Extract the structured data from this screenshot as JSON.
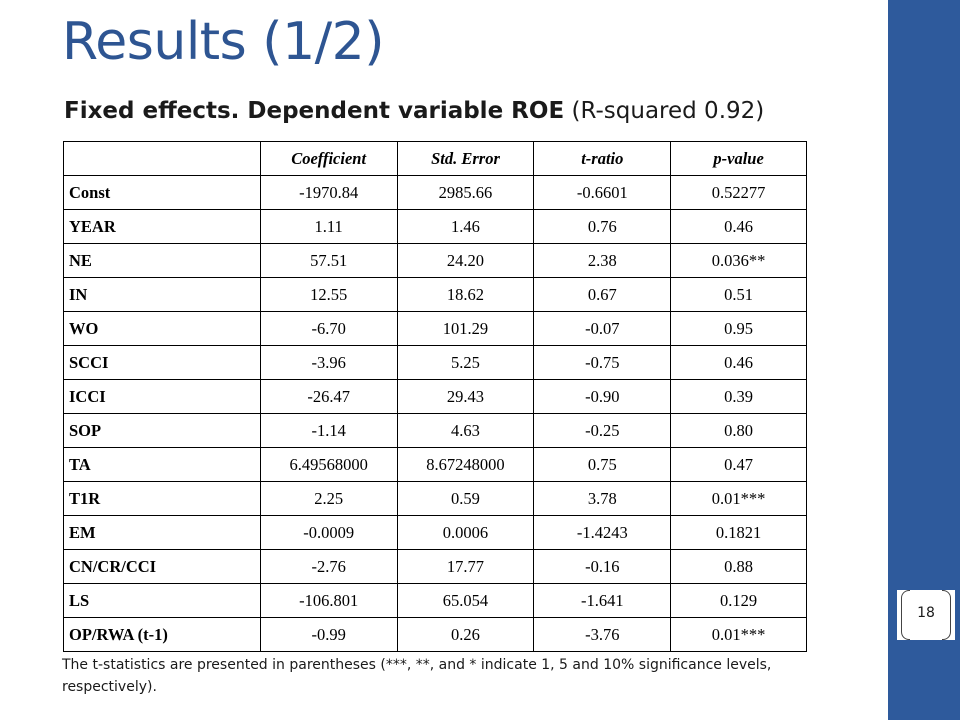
{
  "slide": {
    "title": "Results (1/2)",
    "subtitle_bold": "Fixed effects. Dependent variable ROE",
    "subtitle_regular": " (R-squared 0.92)",
    "page_number": "18",
    "footnote": "The t-statistics are presented in parentheses (***, **, and * indicate 1, 5 and 10% significance levels, respectively)."
  },
  "colors": {
    "sidebar": "#2e5a9c",
    "title": "#2e5592"
  },
  "table": {
    "headers": [
      "",
      "Coefficient",
      "Std. Error",
      "t-ratio",
      "p-value"
    ],
    "rows": [
      [
        "Const",
        "-1970.84",
        "2985.66",
        "-0.6601",
        "0.52277"
      ],
      [
        "YEAR",
        "1.11",
        "1.46",
        "0.76",
        "0.46"
      ],
      [
        "NE",
        "57.51",
        "24.20",
        "2.38",
        "0.036**"
      ],
      [
        "IN",
        "12.55",
        "18.62",
        "0.67",
        "0.51"
      ],
      [
        "WO",
        "-6.70",
        "101.29",
        "-0.07",
        "0.95"
      ],
      [
        "SCCI",
        "-3.96",
        "5.25",
        "-0.75",
        "0.46"
      ],
      [
        "ICCI",
        "-26.47",
        "29.43",
        "-0.90",
        "0.39"
      ],
      [
        "SOP",
        "-1.14",
        "4.63",
        "-0.25",
        "0.80"
      ],
      [
        "TA",
        "6.49568000",
        "8.67248000",
        "0.75",
        "0.47"
      ],
      [
        "T1R",
        "2.25",
        "0.59",
        "3.78",
        "0.01***"
      ],
      [
        "EM",
        "-0.0009",
        "0.0006",
        "-1.4243",
        "0.1821"
      ],
      [
        "CN/CR/CCI",
        "-2.76",
        "17.77",
        "-0.16",
        "0.88"
      ],
      [
        "LS",
        "-106.801",
        "65.054",
        "-1.641",
        "0.129"
      ],
      [
        "OP/RWA (t-1)",
        "-0.99",
        "0.26",
        "-3.76",
        "0.01***"
      ]
    ]
  }
}
